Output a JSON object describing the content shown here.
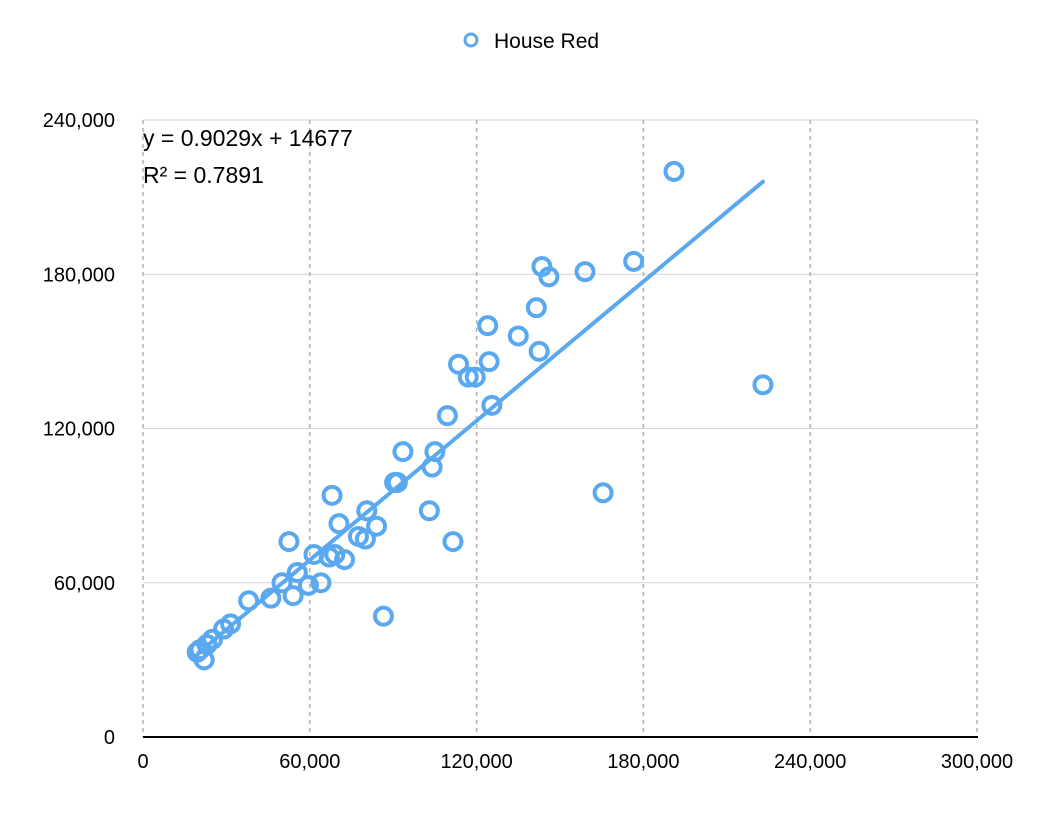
{
  "chart_data": {
    "type": "scatter",
    "title": "",
    "xlabel": "",
    "ylabel": "",
    "xlim": [
      0,
      300000
    ],
    "ylim": [
      0,
      240000
    ],
    "x_ticks": [
      0,
      60000,
      120000,
      180000,
      240000,
      300000
    ],
    "y_ticks": [
      0,
      60000,
      120000,
      180000,
      240000
    ],
    "x_tick_labels": [
      "0",
      "60,000",
      "120,000",
      "180,000",
      "240,000",
      "300,000"
    ],
    "y_tick_labels": [
      "0",
      "60,000",
      "120,000",
      "180,000",
      "240,000"
    ],
    "vertical_grid": "dashed",
    "horizontal_grid": "solid",
    "legend_position": "top-center",
    "series": [
      {
        "name": "House Red",
        "color": "#5AA8F0",
        "marker": "hollow-circle",
        "points": [
          [
            19500,
            33000
          ],
          [
            20500,
            34000
          ],
          [
            22000,
            30000
          ],
          [
            23000,
            36000
          ],
          [
            25000,
            38000
          ],
          [
            29000,
            42000
          ],
          [
            31500,
            44000
          ],
          [
            38000,
            53000
          ],
          [
            46000,
            54000
          ],
          [
            50000,
            60000
          ],
          [
            52500,
            76000
          ],
          [
            54000,
            55000
          ],
          [
            55500,
            64000
          ],
          [
            59500,
            59000
          ],
          [
            61500,
            71000
          ],
          [
            64000,
            60000
          ],
          [
            67000,
            70000
          ],
          [
            68000,
            94000
          ],
          [
            69000,
            71000
          ],
          [
            70500,
            83000
          ],
          [
            72500,
            69000
          ],
          [
            77500,
            78000
          ],
          [
            80000,
            77000
          ],
          [
            80500,
            88000
          ],
          [
            84000,
            82000
          ],
          [
            86500,
            47000
          ],
          [
            90500,
            99000
          ],
          [
            91500,
            99000
          ],
          [
            93500,
            111000
          ],
          [
            103000,
            88000
          ],
          [
            104000,
            105000
          ],
          [
            105000,
            111000
          ],
          [
            109500,
            125000
          ],
          [
            111500,
            76000
          ],
          [
            113500,
            145000
          ],
          [
            117000,
            140000
          ],
          [
            119500,
            140000
          ],
          [
            124000,
            160000
          ],
          [
            124500,
            146000
          ],
          [
            125500,
            129000
          ],
          [
            135000,
            156000
          ],
          [
            141500,
            167000
          ],
          [
            142500,
            150000
          ],
          [
            143500,
            183000
          ],
          [
            146000,
            179000
          ],
          [
            159000,
            181000
          ],
          [
            165500,
            95000
          ],
          [
            176500,
            185000
          ],
          [
            191000,
            220000
          ],
          [
            223000,
            137000
          ]
        ]
      }
    ],
    "trendline": {
      "series": "House Red",
      "slope": 0.9029,
      "intercept": 14677,
      "x_range": [
        20000,
        223000
      ],
      "equation_label": "y = 0.9029x + 14677",
      "r2_label": "R² = 0.7891"
    }
  }
}
